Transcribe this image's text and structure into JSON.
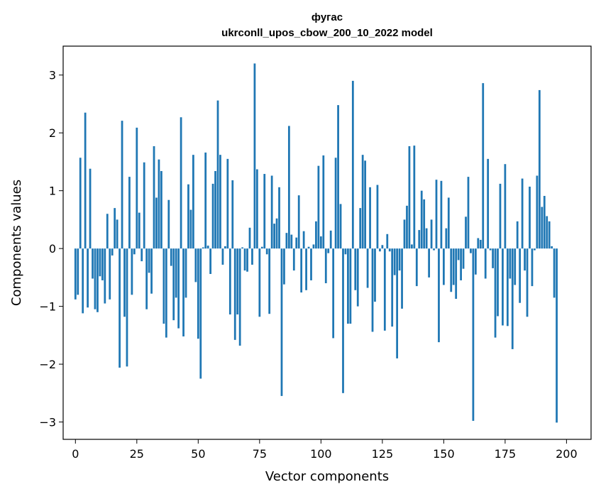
{
  "chart_data": {
    "type": "bar",
    "title": "фугас",
    "subtitle": "ukrconll_upos_cbow_200_10_2022 model",
    "xlabel": "Vector components",
    "ylabel": "Components values",
    "xlim": [
      -5,
      210
    ],
    "ylim": [
      -3.3,
      3.5
    ],
    "xticks": [
      0,
      25,
      50,
      75,
      100,
      125,
      150,
      175,
      200
    ],
    "yticks": [
      -3,
      -2,
      -1,
      0,
      1,
      2,
      3
    ],
    "ytick_labels": [
      "−3",
      "−2",
      "−1",
      "0",
      "1",
      "2",
      "3"
    ],
    "grid": false,
    "color": "#1f77b4",
    "values": [
      -0.88,
      -0.8,
      1.57,
      -1.12,
      2.35,
      -1.02,
      1.38,
      -0.52,
      -1.05,
      -1.1,
      -0.48,
      -0.55,
      -0.95,
      0.6,
      -0.88,
      -0.12,
      0.7,
      0.5,
      -2.06,
      2.21,
      -1.18,
      -2.04,
      1.24,
      -0.8,
      -0.1,
      2.09,
      0.62,
      -0.22,
      1.49,
      -1.05,
      -0.42,
      -0.78,
      1.77,
      0.88,
      1.54,
      1.34,
      -1.3,
      -1.54,
      0.84,
      -0.3,
      -1.24,
      -0.85,
      -1.38,
      2.27,
      -1.52,
      -0.85,
      1.11,
      0.67,
      1.62,
      -0.58,
      -1.56,
      -2.25,
      0.02,
      1.66,
      0.05,
      -0.44,
      1.12,
      1.34,
      2.56,
      1.62,
      -0.28,
      0.04,
      1.55,
      -1.14,
      1.18,
      -1.58,
      -1.14,
      -1.68,
      0.02,
      -0.38,
      -0.4,
      0.36,
      -0.28,
      3.2,
      1.37,
      -1.18,
      0.03,
      1.29,
      -0.1,
      -1.13,
      1.26,
      0.43,
      0.52,
      1.06,
      -2.55,
      -0.62,
      0.27,
      2.12,
      0.24,
      -0.38,
      0.19,
      0.92,
      -0.76,
      0.3,
      -0.72,
      0.03,
      -0.55,
      0.07,
      0.47,
      1.43,
      0.21,
      1.61,
      -0.6,
      -0.08,
      0.31,
      -1.55,
      1.57,
      2.48,
      0.77,
      -2.5,
      -0.1,
      -1.3,
      -1.3,
      2.9,
      -0.72,
      -1.0,
      0.7,
      1.62,
      1.52,
      -0.68,
      1.06,
      -1.44,
      -0.92,
      1.1,
      -0.05,
      0.06,
      -1.42,
      0.25,
      -0.05,
      -1.35,
      -0.46,
      -1.9,
      -0.38,
      -1.04,
      0.5,
      0.74,
      1.77,
      0.07,
      1.78,
      -0.65,
      0.32,
      1.0,
      0.85,
      0.35,
      -0.5,
      0.5,
      -0.03,
      1.19,
      -1.62,
      1.17,
      -0.63,
      0.35,
      0.88,
      -0.75,
      -0.63,
      -0.87,
      -0.2,
      -0.55,
      -0.35,
      0.55,
      1.24,
      -0.08,
      -2.98,
      -0.45,
      0.18,
      0.15,
      2.86,
      -0.52,
      1.55,
      -0.03,
      -0.34,
      -1.54,
      -1.17,
      1.12,
      -1.33,
      1.46,
      -1.34,
      -0.52,
      -1.74,
      -0.63,
      0.47,
      -0.94,
      1.21,
      -0.38,
      -1.18,
      1.07,
      -0.65,
      -0.03,
      1.26,
      2.74,
      0.72,
      0.91,
      0.56,
      0.47,
      0.04,
      -0.85,
      -3.01
    ]
  }
}
